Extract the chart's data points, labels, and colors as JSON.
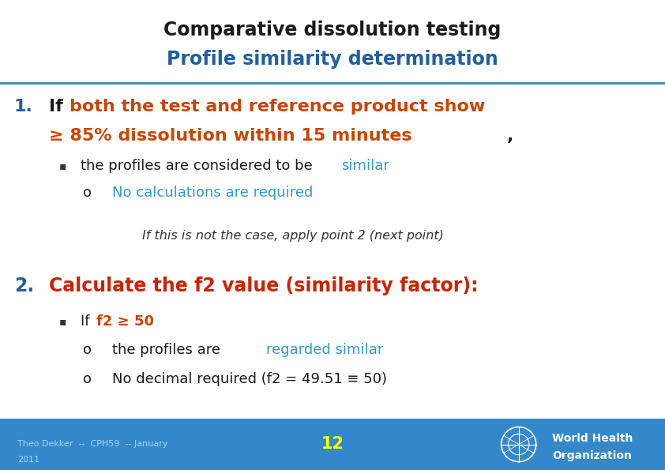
{
  "title_line1": "Comparative dissolution testing",
  "title_line2": "Profile similarity determination",
  "title_line1_color": "#1a1a1a",
  "title_line2_color": "#2060a0",
  "title_separator_color": "#3388bb",
  "background_color": "#ffffff",
  "footer_bg_color": "#3388cc",
  "footer_text_line1": "Theo Dekker  --  CPH59  -- January",
  "footer_text_line2": "2011",
  "footer_text_color": "#aad4f0",
  "footer_number": "12",
  "footer_number_color": "#ffff00",
  "point1_number_color": "#2060a0",
  "point1_orange_color": "#cc4400",
  "bullet1_blue_color": "#3399cc",
  "sub1_blue_color": "#3399cc",
  "italic_note_color": "#333333",
  "point2_number_color": "#2060a0",
  "point2_text_color": "#cc2200",
  "bullet2_orange_color": "#cc4400",
  "sub2a_blue_color": "#3399cc",
  "sub2b_color": "#1a1a1a",
  "fig_width": 8.42,
  "fig_height": 5.95,
  "dpi": 100
}
